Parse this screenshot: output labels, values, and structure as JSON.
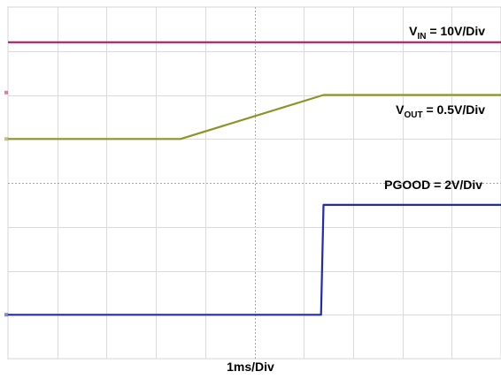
{
  "chart_data": {
    "type": "line",
    "xlabel": "1ms/Div",
    "grid": true,
    "x_divisions": 10,
    "y_divisions": 8,
    "xlim": [
      0,
      10
    ],
    "ylim": [
      0,
      8
    ],
    "series": [
      {
        "name_parts": [
          "V",
          "IN",
          " = 10V/Div"
        ],
        "color": "#c2185b",
        "x": [
          0,
          10
        ],
        "y": [
          7.2,
          7.2
        ]
      },
      {
        "name_parts": [
          "V",
          "OUT",
          " = 0.5V/Div"
        ],
        "color": "#8d9426",
        "x": [
          0,
          3.5,
          6.4,
          10
        ],
        "y": [
          5.0,
          5.0,
          6.0,
          6.0
        ]
      },
      {
        "name": "PGOOD = 2V/Div",
        "color": "#1f2bb0",
        "x": [
          0,
          6.35,
          6.4,
          10
        ],
        "y": [
          1.0,
          1.0,
          3.5,
          3.5
        ]
      }
    ]
  }
}
